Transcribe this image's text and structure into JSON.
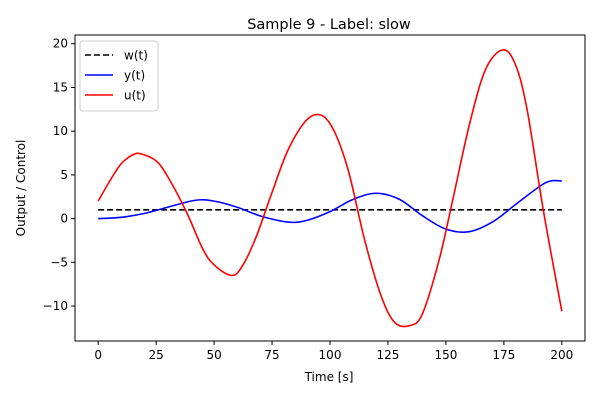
{
  "chart_data": {
    "type": "line",
    "title": "Sample 9 - Label: slow",
    "xlabel": "Time [s]",
    "ylabel": "Output / Control",
    "xlim": [
      -10,
      210
    ],
    "ylim": [
      -14,
      21
    ],
    "xticks": [
      0,
      25,
      50,
      75,
      100,
      125,
      150,
      175,
      200
    ],
    "yticks": [
      -10,
      -5,
      0,
      5,
      10,
      15,
      20
    ],
    "ytick_labels": [
      "−10",
      "−5",
      "0",
      "5",
      "10",
      "15",
      "20"
    ],
    "grid": false,
    "legend": "top-left",
    "series": [
      {
        "name": "w(t)",
        "color": "#000000",
        "style": "dashed",
        "x": [
          0,
          200
        ],
        "y": [
          1,
          1
        ]
      },
      {
        "name": "y(t)",
        "color": "#0000ff",
        "style": "solid",
        "x": [
          0,
          10,
          20,
          30,
          42,
          50,
          60,
          70,
          82,
          90,
          100,
          110,
          120,
          130,
          140,
          150,
          160,
          170,
          180,
          190,
          195,
          200
        ],
        "y": [
          0,
          0.15,
          0.6,
          1.3,
          2.1,
          2.0,
          1.3,
          0.3,
          -0.4,
          -0.2,
          0.8,
          2.2,
          2.9,
          2.2,
          0.3,
          -1.2,
          -1.5,
          -0.4,
          1.6,
          3.6,
          4.3,
          4.3
        ]
      },
      {
        "name": "u(t)",
        "color": "#ff0000",
        "style": "solid",
        "x": [
          0,
          5,
          10,
          15,
          18.5,
          25,
          30,
          38,
          45,
          50,
          57.5,
          62,
          68,
          75,
          82,
          90,
          96.5,
          102,
          108,
          115,
          122,
          128,
          135,
          140,
          147,
          153,
          160,
          167,
          174.5,
          180,
          185,
          192,
          200
        ],
        "y": [
          2,
          4.3,
          6.3,
          7.3,
          7.4,
          6.6,
          4.8,
          0.8,
          -3.4,
          -5.3,
          -6.5,
          -5.5,
          -2.2,
          3.0,
          7.9,
          11.3,
          11.8,
          9.9,
          5.4,
          -2.5,
          -8.8,
          -11.9,
          -12.2,
          -10.8,
          -4.8,
          2.2,
          10.6,
          17.0,
          19.3,
          17.6,
          12.5,
          1.0,
          -10.6
        ]
      }
    ]
  }
}
